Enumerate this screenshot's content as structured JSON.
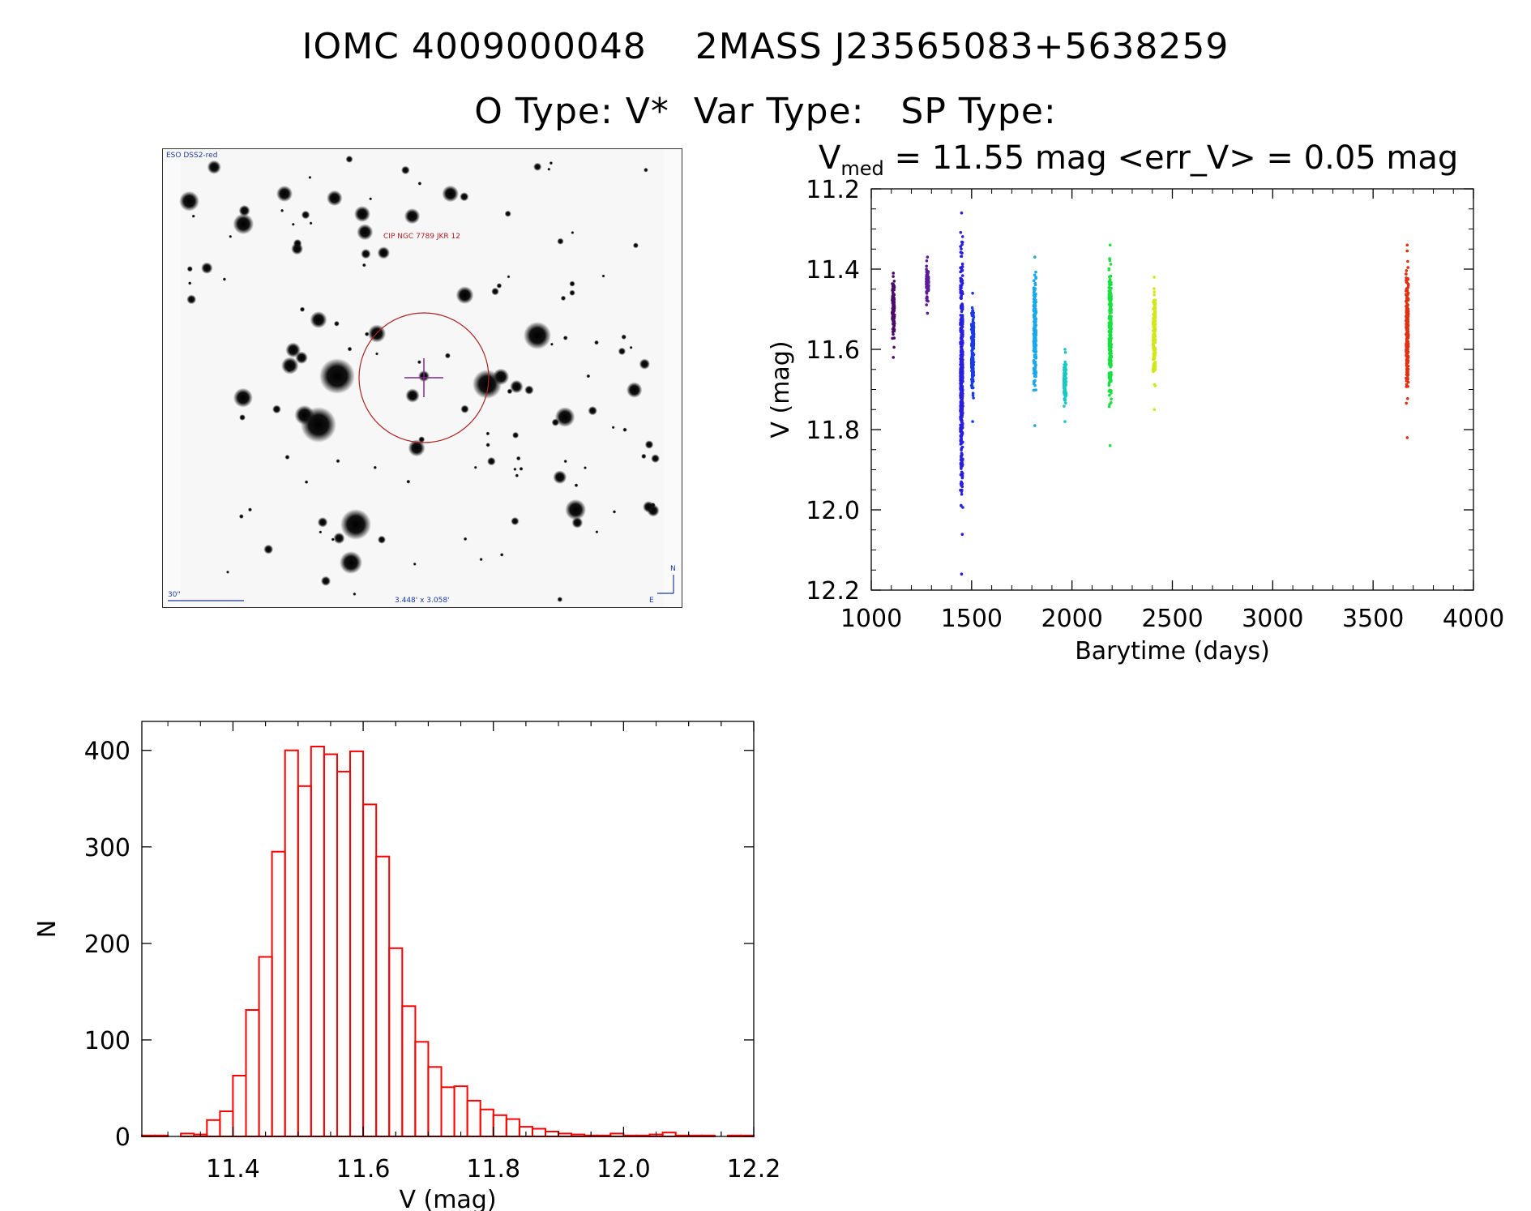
{
  "header": {
    "line1": "IOMC 4009000048    2MASS J23565083+5638259",
    "line2": "O Type: V*  Var Type:   SP Type:"
  },
  "finder_chart": {
    "survey_label": "ESO DSS2-red",
    "object_label": "CIP NGC 7789 JKR 12",
    "scale_label": "30\"",
    "fov_label": "3.448' x 3.058'",
    "north_label": "N",
    "east_label": "E"
  },
  "lightcurve_stats": {
    "vmed_symbol": "V",
    "vmed_sub": "med",
    "text": " = 11.55 mag <err_V> = 0.05 mag"
  },
  "chart_data": [
    {
      "type": "scatter",
      "title": "V_med = 11.55 mag <err_V> = 0.05 mag",
      "xlabel": "Barytime (days)",
      "ylabel": "V (mag)",
      "xlim": [
        1000,
        4000
      ],
      "ylim": [
        12.2,
        11.2
      ],
      "xticks": [
        "1000",
        "1500",
        "2000",
        "2500",
        "3000",
        "3500",
        "4000"
      ],
      "yticks": [
        "11.2",
        "11.4",
        "11.6",
        "11.8",
        "12.0",
        "12.2"
      ],
      "clusters": [
        {
          "x": 1110,
          "ymin": 11.41,
          "ymax": 11.62,
          "color": "#4a0a6a"
        },
        {
          "x": 1280,
          "ymin": 11.37,
          "ymax": 11.51,
          "color": "#5a1a9a"
        },
        {
          "x": 1450,
          "ymin": 11.26,
          "ymax": 12.16,
          "color": "#2a1ee0"
        },
        {
          "x": 1505,
          "ymin": 11.46,
          "ymax": 11.78,
          "color": "#1a3ae8"
        },
        {
          "x": 1815,
          "ymin": 11.37,
          "ymax": 11.79,
          "color": "#1aa8e8"
        },
        {
          "x": 1965,
          "ymin": 11.6,
          "ymax": 11.78,
          "color": "#18c8c0"
        },
        {
          "x": 2190,
          "ymin": 11.34,
          "ymax": 11.84,
          "color": "#18e040"
        },
        {
          "x": 2410,
          "ymin": 11.42,
          "ymax": 11.75,
          "color": "#d0e818"
        },
        {
          "x": 3670,
          "ymin": 11.34,
          "ymax": 11.82,
          "color": "#e03010"
        }
      ]
    },
    {
      "type": "bar",
      "title": "",
      "xlabel": "V (mag)",
      "ylabel": "N",
      "xlim": [
        11.26,
        12.2
      ],
      "ylim": [
        0,
        430
      ],
      "xticks": [
        "11.4",
        "11.6",
        "11.8",
        "12.0",
        "12.2"
      ],
      "yticks": [
        "0",
        "100",
        "200",
        "300",
        "400"
      ],
      "bin_width": 0.02,
      "bin_start": 11.26,
      "values": [
        1,
        1,
        0,
        3,
        2,
        17,
        26,
        63,
        131,
        186,
        295,
        400,
        363,
        404,
        396,
        378,
        399,
        344,
        290,
        195,
        135,
        98,
        72,
        51,
        52,
        37,
        28,
        22,
        18,
        10,
        8,
        5,
        3,
        2,
        1,
        1,
        3,
        1,
        1,
        2,
        4,
        1,
        1,
        1,
        0,
        1,
        1
      ]
    }
  ]
}
